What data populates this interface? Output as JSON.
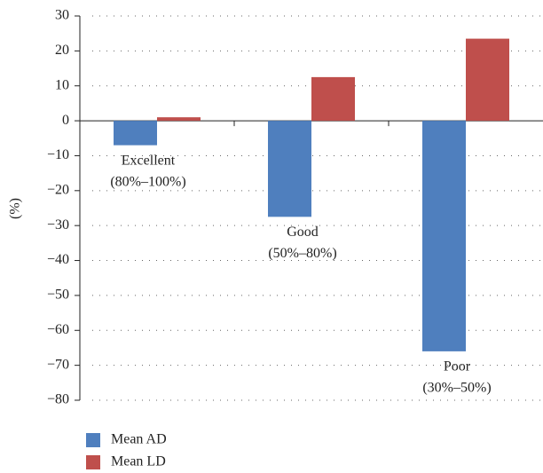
{
  "chart_data": {
    "type": "bar",
    "y_label": "(%)",
    "categories": [
      [
        "Excellent",
        "(80%–100%)"
      ],
      [
        "Good",
        "(50%–80%)"
      ],
      [
        "Poor",
        "(30%–50%)"
      ]
    ],
    "series": [
      {
        "name": "Mean AD",
        "color": "#4f7fbe",
        "values": [
          -7,
          -27.5,
          -66
        ]
      },
      {
        "name": "Mean LD",
        "color": "#bf4f4c",
        "values": [
          1,
          12.5,
          23.5
        ]
      }
    ],
    "ylim": [
      -80,
      30
    ],
    "yticks": [
      {
        "value": -80,
        "label": "−80"
      },
      {
        "value": -70,
        "label": "−70"
      },
      {
        "value": -60,
        "label": "−60"
      },
      {
        "value": -50,
        "label": "−50"
      },
      {
        "value": -40,
        "label": "−40"
      },
      {
        "value": -30,
        "label": "−30"
      },
      {
        "value": -20,
        "label": "−20"
      },
      {
        "value": -10,
        "label": "−10"
      },
      0,
      10,
      20,
      30
    ],
    "grid": true
  }
}
